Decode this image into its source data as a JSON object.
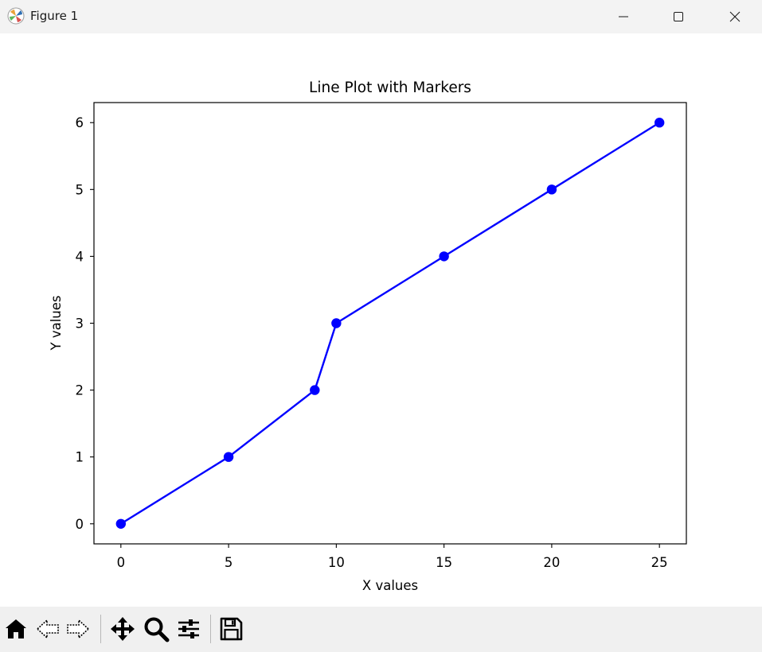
{
  "window": {
    "title": "Figure 1",
    "icon": "matplotlib-icon",
    "controls": [
      "minimize-icon",
      "maximize-icon",
      "close-icon"
    ]
  },
  "chart_data": {
    "type": "line",
    "title": "Line Plot with Markers",
    "xlabel": "X values",
    "ylabel": "Y values",
    "x": [
      0,
      5,
      9,
      10,
      15,
      20,
      25
    ],
    "series": [
      {
        "values": [
          0,
          1,
          2,
          3,
          4,
          5,
          6
        ],
        "color": "#0000ff",
        "marker": "circle"
      }
    ],
    "xlim": [
      -1.25,
      26.25
    ],
    "ylim": [
      -0.3,
      6.3
    ],
    "xticks": [
      0,
      5,
      10,
      15,
      20,
      25
    ],
    "yticks": [
      0,
      1,
      2,
      3,
      4,
      5,
      6
    ],
    "grid": false
  },
  "toolbar": {
    "items": [
      "home-icon",
      "back-icon",
      "forward-icon",
      "pan-icon",
      "zoom-icon",
      "configure-subplots-icon",
      "save-icon"
    ]
  },
  "colors": {
    "titlebar": "#f3f3f3",
    "toolbar": "#f0f0f0",
    "line": "#0000ff"
  }
}
